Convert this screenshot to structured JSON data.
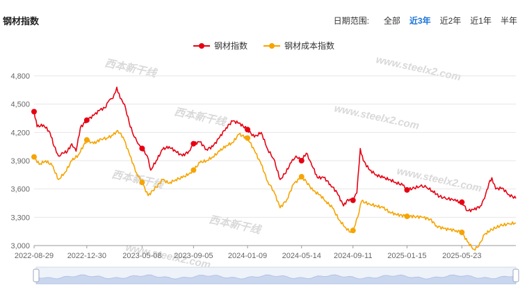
{
  "page": {
    "title": "钢材指数"
  },
  "date_range": {
    "label": "日期范围:",
    "options": [
      "全部",
      "近3年",
      "近2年",
      "近1年",
      "半年"
    ],
    "selected": "近3年"
  },
  "colors": {
    "steel": "#e60012",
    "cost": "#f5a400",
    "grid": "#e6e6e6",
    "axis": "#666666"
  },
  "watermark": {
    "url": "www.steelx2.com",
    "brand": "西本新干线"
  },
  "chart_data": {
    "type": "line",
    "title": "",
    "xlabel": "",
    "ylabel": "",
    "ylim": [
      2950,
      4950
    ],
    "yticks": [
      3000,
      3300,
      3600,
      3900,
      4200,
      4500,
      4800
    ],
    "ytick_labels": [
      "3,000",
      "3,300",
      "3,600",
      "3,900",
      "4,200",
      "4,500",
      "4,800"
    ],
    "xticks": [
      "2022-08-29",
      "2022-12-30",
      "2023-05-08",
      "2023-09-05",
      "2024-01-09",
      "2024-05-14",
      "2024-09-11",
      "2025-01-15",
      "2025-05-23"
    ],
    "xrange": [
      "2022-08-29",
      "2025-09-26"
    ],
    "legend_position": "top-center",
    "grid": true,
    "series": [
      {
        "name": "钢材指数",
        "color": "#e60012",
        "points": [
          [
            "2022-08-29",
            4420
          ],
          [
            "2022-09-05",
            4260
          ],
          [
            "2022-09-20",
            4280
          ],
          [
            "2022-10-05",
            4200
          ],
          [
            "2022-10-15",
            4050
          ],
          [
            "2022-10-25",
            3950
          ],
          [
            "2022-11-05",
            3980
          ],
          [
            "2022-11-15",
            4000
          ],
          [
            "2022-11-25",
            4080
          ],
          [
            "2022-12-05",
            4000
          ],
          [
            "2022-12-15",
            4250
          ],
          [
            "2022-12-30",
            4330
          ],
          [
            "2023-01-15",
            4380
          ],
          [
            "2023-01-30",
            4440
          ],
          [
            "2023-02-10",
            4460
          ],
          [
            "2023-02-20",
            4540
          ],
          [
            "2023-03-01",
            4560
          ],
          [
            "2023-03-10",
            4680
          ],
          [
            "2023-03-18",
            4560
          ],
          [
            "2023-03-28",
            4500
          ],
          [
            "2023-04-08",
            4300
          ],
          [
            "2023-04-20",
            4150
          ],
          [
            "2023-05-01",
            4070
          ],
          [
            "2023-05-08",
            4030
          ],
          [
            "2023-05-20",
            3950
          ],
          [
            "2023-05-28",
            3800
          ],
          [
            "2023-06-10",
            3900
          ],
          [
            "2023-06-25",
            4020
          ],
          [
            "2023-07-10",
            4050
          ],
          [
            "2023-07-25",
            4000
          ],
          [
            "2023-08-10",
            3950
          ],
          [
            "2023-08-25",
            4000
          ],
          [
            "2023-09-05",
            4080
          ],
          [
            "2023-09-20",
            4100
          ],
          [
            "2023-10-05",
            4020
          ],
          [
            "2023-10-20",
            4050
          ],
          [
            "2023-11-05",
            4150
          ],
          [
            "2023-11-20",
            4250
          ],
          [
            "2023-12-05",
            4320
          ],
          [
            "2023-12-20",
            4300
          ],
          [
            "2024-01-09",
            4230
          ],
          [
            "2024-01-25",
            4150
          ],
          [
            "2024-02-10",
            4200
          ],
          [
            "2024-02-25",
            4020
          ],
          [
            "2024-03-10",
            3920
          ],
          [
            "2024-03-25",
            3700
          ],
          [
            "2024-04-05",
            3760
          ],
          [
            "2024-04-20",
            3880
          ],
          [
            "2024-05-01",
            3950
          ],
          [
            "2024-05-14",
            3900
          ],
          [
            "2024-05-25",
            3980
          ],
          [
            "2024-06-05",
            3880
          ],
          [
            "2024-06-20",
            3720
          ],
          [
            "2024-07-05",
            3720
          ],
          [
            "2024-07-20",
            3650
          ],
          [
            "2024-08-05",
            3560
          ],
          [
            "2024-08-20",
            3420
          ],
          [
            "2024-08-30",
            3490
          ],
          [
            "2024-09-11",
            3480
          ],
          [
            "2024-09-20",
            3560
          ],
          [
            "2024-09-28",
            4030
          ],
          [
            "2024-10-05",
            3900
          ],
          [
            "2024-10-20",
            3800
          ],
          [
            "2024-11-05",
            3750
          ],
          [
            "2024-11-20",
            3720
          ],
          [
            "2024-12-05",
            3700
          ],
          [
            "2024-12-20",
            3670
          ],
          [
            "2025-01-05",
            3640
          ],
          [
            "2025-01-15",
            3590
          ],
          [
            "2025-02-01",
            3610
          ],
          [
            "2025-02-15",
            3630
          ],
          [
            "2025-03-01",
            3620
          ],
          [
            "2025-03-15",
            3580
          ],
          [
            "2025-04-01",
            3520
          ],
          [
            "2025-04-15",
            3500
          ],
          [
            "2025-05-01",
            3490
          ],
          [
            "2025-05-10",
            3470
          ],
          [
            "2025-05-23",
            3460
          ],
          [
            "2025-06-05",
            3370
          ],
          [
            "2025-06-20",
            3380
          ],
          [
            "2025-07-05",
            3420
          ],
          [
            "2025-07-15",
            3500
          ],
          [
            "2025-07-25",
            3660
          ],
          [
            "2025-08-01",
            3720
          ],
          [
            "2025-08-10",
            3600
          ],
          [
            "2025-08-25",
            3610
          ],
          [
            "2025-09-10",
            3540
          ],
          [
            "2025-09-26",
            3500
          ]
        ],
        "markers": [
          "2022-08-29",
          "2022-12-30",
          "2023-05-08",
          "2023-09-05",
          "2024-01-09",
          "2024-05-14",
          "2024-09-11",
          "2025-01-15",
          "2025-05-23"
        ]
      },
      {
        "name": "钢材成本指数",
        "color": "#f5a400",
        "points": [
          [
            "2022-08-29",
            3940
          ],
          [
            "2022-09-10",
            3860
          ],
          [
            "2022-09-25",
            3900
          ],
          [
            "2022-10-10",
            3850
          ],
          [
            "2022-10-25",
            3700
          ],
          [
            "2022-11-10",
            3780
          ],
          [
            "2022-11-25",
            3900
          ],
          [
            "2022-12-10",
            3960
          ],
          [
            "2022-12-30",
            4120
          ],
          [
            "2023-01-15",
            4080
          ],
          [
            "2023-02-01",
            4130
          ],
          [
            "2023-02-15",
            4140
          ],
          [
            "2023-03-01",
            4170
          ],
          [
            "2023-03-12",
            4220
          ],
          [
            "2023-03-25",
            4150
          ],
          [
            "2023-04-10",
            3950
          ],
          [
            "2023-04-25",
            3770
          ],
          [
            "2023-05-08",
            3670
          ],
          [
            "2023-05-22",
            3530
          ],
          [
            "2023-06-10",
            3620
          ],
          [
            "2023-06-25",
            3700
          ],
          [
            "2023-07-10",
            3660
          ],
          [
            "2023-07-25",
            3700
          ],
          [
            "2023-08-10",
            3720
          ],
          [
            "2023-08-25",
            3760
          ],
          [
            "2023-09-05",
            3800
          ],
          [
            "2023-09-20",
            3880
          ],
          [
            "2023-10-05",
            3900
          ],
          [
            "2023-10-20",
            3940
          ],
          [
            "2023-11-05",
            4000
          ],
          [
            "2023-11-20",
            4060
          ],
          [
            "2023-12-05",
            4090
          ],
          [
            "2023-12-20",
            4180
          ],
          [
            "2024-01-09",
            4140
          ],
          [
            "2024-01-25",
            4010
          ],
          [
            "2024-02-10",
            3860
          ],
          [
            "2024-02-25",
            3680
          ],
          [
            "2024-03-10",
            3580
          ],
          [
            "2024-03-25",
            3400
          ],
          [
            "2024-04-10",
            3490
          ],
          [
            "2024-04-25",
            3650
          ],
          [
            "2024-05-14",
            3730
          ],
          [
            "2024-05-25",
            3680
          ],
          [
            "2024-06-10",
            3580
          ],
          [
            "2024-06-25",
            3540
          ],
          [
            "2024-07-10",
            3470
          ],
          [
            "2024-07-25",
            3400
          ],
          [
            "2024-08-10",
            3270
          ],
          [
            "2024-08-25",
            3190
          ],
          [
            "2024-09-05",
            3140
          ],
          [
            "2024-09-11",
            3160
          ],
          [
            "2024-09-22",
            3300
          ],
          [
            "2024-10-01",
            3470
          ],
          [
            "2024-10-20",
            3440
          ],
          [
            "2024-11-05",
            3420
          ],
          [
            "2024-11-20",
            3400
          ],
          [
            "2024-12-05",
            3360
          ],
          [
            "2024-12-20",
            3330
          ],
          [
            "2025-01-15",
            3310
          ],
          [
            "2025-02-01",
            3310
          ],
          [
            "2025-02-20",
            3300
          ],
          [
            "2025-03-10",
            3280
          ],
          [
            "2025-03-25",
            3210
          ],
          [
            "2025-04-10",
            3180
          ],
          [
            "2025-04-25",
            3170
          ],
          [
            "2025-05-10",
            3160
          ],
          [
            "2025-05-23",
            3140
          ],
          [
            "2025-06-05",
            3040
          ],
          [
            "2025-06-20",
            2960
          ],
          [
            "2025-07-01",
            2990
          ],
          [
            "2025-07-15",
            3120
          ],
          [
            "2025-08-01",
            3170
          ],
          [
            "2025-08-20",
            3210
          ],
          [
            "2025-09-10",
            3230
          ],
          [
            "2025-09-26",
            3240
          ]
        ],
        "markers": [
          "2022-08-29",
          "2022-12-30",
          "2023-05-08",
          "2023-09-05",
          "2024-01-09",
          "2024-05-14",
          "2024-09-11",
          "2025-01-15",
          "2025-05-23"
        ]
      }
    ]
  }
}
